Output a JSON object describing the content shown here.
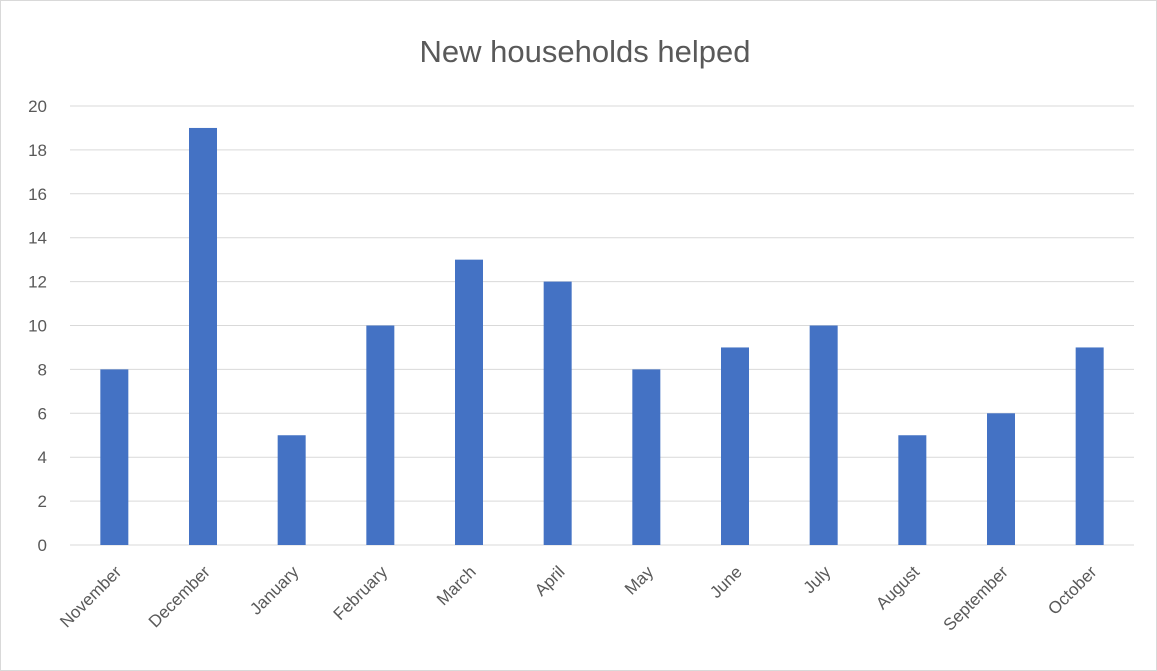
{
  "chart_data": {
    "type": "bar",
    "title": "New households helped",
    "xlabel": "",
    "ylabel": "",
    "categories": [
      "November",
      "December",
      "January",
      "February",
      "March",
      "April",
      "May",
      "June",
      "July",
      "August",
      "September",
      "October"
    ],
    "values": [
      8,
      19,
      5,
      10,
      13,
      12,
      8,
      9,
      10,
      5,
      6,
      9
    ],
    "ylim": [
      0,
      20
    ],
    "yticks": [
      "0",
      "2",
      "4",
      "6",
      "8",
      "10",
      "12",
      "14",
      "16",
      "18",
      "20"
    ],
    "grid": true,
    "legend": "none",
    "bar_color": "#4472C4",
    "grid_color": "#d9d9d9",
    "text_color": "#595959"
  }
}
